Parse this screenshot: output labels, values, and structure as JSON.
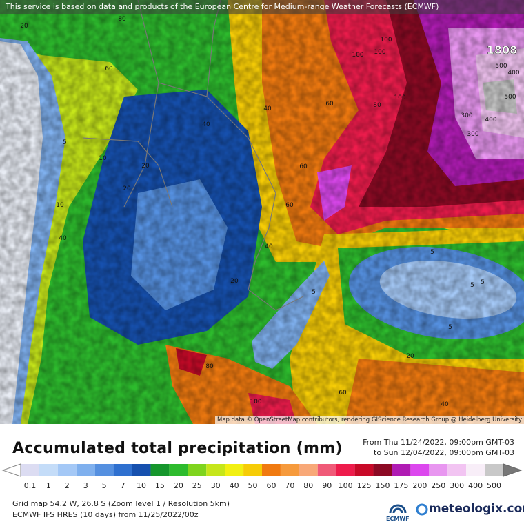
{
  "header_notice": "This service is based on data and products of the European Centre for Medium-range Weather Forecasts (ECMWF)",
  "map": {
    "attribution": "Map data © OpenStreetMap contributors, rendering GIScience Research Group @ Heidelberg University",
    "labels": [
      1808,
      500,
      400,
      500,
      300,
      400,
      300,
      100,
      100,
      100,
      80,
      60,
      60,
      40,
      40,
      20,
      20,
      10,
      5,
      5,
      5,
      5,
      20,
      40,
      60,
      100,
      80,
      5,
      5,
      10,
      20,
      40,
      60,
      80,
      100,
      60,
      40,
      20
    ]
  },
  "title": "Accumulated total precipitation (mm)",
  "period": {
    "from": "From Thu 11/24/2022, 09:00pm GMT-03",
    "to": "to Sun 12/04/2022, 09:00pm GMT-03"
  },
  "scale": {
    "ticks": [
      0.1,
      1,
      2,
      3,
      5,
      7,
      10,
      15,
      20,
      25,
      30,
      40,
      50,
      60,
      70,
      80,
      90,
      100,
      125,
      150,
      175,
      200,
      250,
      300,
      400,
      500
    ],
    "colors": [
      "#dcdcf2",
      "#c4dcf8",
      "#a4c8f6",
      "#7fb0ee",
      "#5590e0",
      "#2f70cf",
      "#1650ae",
      "#16962c",
      "#2dbb2d",
      "#7fd41e",
      "#c6e61a",
      "#f2f012",
      "#f6cc06",
      "#f07a10",
      "#f69a3c",
      "#f8a878",
      "#f05a78",
      "#ee1c4c",
      "#c80a28",
      "#8c0a24",
      "#b01cb4",
      "#dc48ee",
      "#e896f0",
      "#f2c4f2",
      "#f8eef8",
      "#c8c8c8"
    ]
  },
  "footer": {
    "grid": "Grid map 54.2 W, 26.8 S (Zoom level 1 / Resolution 5km)",
    "model": "ECMWF IFS HRES (10 days) from 11/25/2022/00z",
    "ecmwf_logo": "ECMWF",
    "brand": "meteologix.com"
  }
}
